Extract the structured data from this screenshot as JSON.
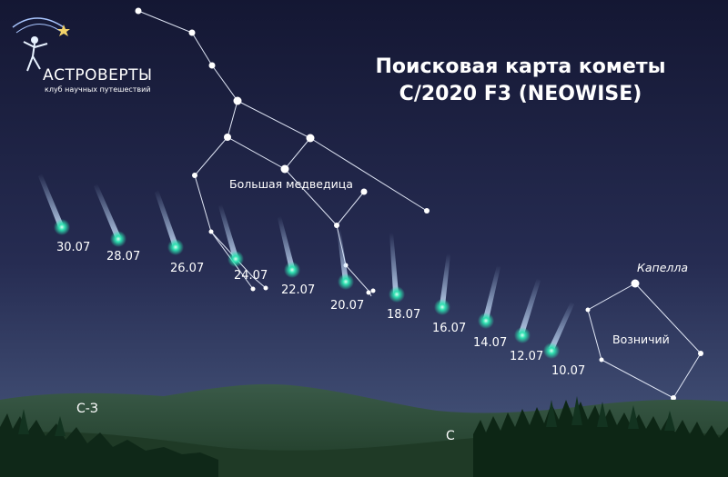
{
  "logo": {
    "name": "АСТРОВЕРТЫ",
    "tagline": "клуб научных путешествий"
  },
  "title": {
    "line1": "Поисковая карта кометы",
    "line2": "C/2020 F3 (NEOWISE)"
  },
  "constellations": {
    "ursa_major": "Большая медведица",
    "auriga": "Возничий",
    "capella": "Капелла"
  },
  "comet_positions": [
    {
      "date": "30.07"
    },
    {
      "date": "28.07"
    },
    {
      "date": "26.07"
    },
    {
      "date": "24.07"
    },
    {
      "date": "22.07"
    },
    {
      "date": "20.07"
    },
    {
      "date": "18.07"
    },
    {
      "date": "16.07"
    },
    {
      "date": "14.07"
    },
    {
      "date": "12.07"
    },
    {
      "date": "10.07"
    }
  ],
  "directions": {
    "northwest": "С-З",
    "north": "С"
  },
  "colors": {
    "sky_top": "#151834",
    "sky_bottom": "#3e4c72",
    "comet": "#2de0b0",
    "hills": "#2b4a35",
    "forest": "#0f2a18"
  }
}
